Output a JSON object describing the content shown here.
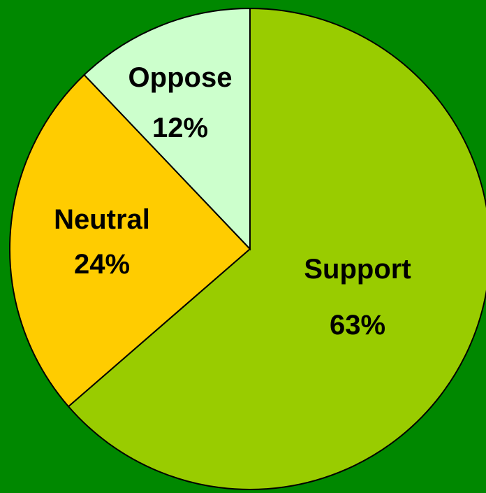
{
  "chart_data": {
    "type": "pie",
    "title": "",
    "slices": [
      {
        "label": "Support",
        "value": 63,
        "value_label": "63%",
        "color": "#99cc00"
      },
      {
        "label": "Neutral",
        "value": 24,
        "value_label": "24%",
        "color": "#ffcc00"
      },
      {
        "label": "Oppose",
        "value": 12,
        "value_label": "12%",
        "color": "#ccffcc"
      }
    ],
    "background_color": "#008800",
    "start_angle": "12 o'clock",
    "direction": "clockwise",
    "legend": "none",
    "labels_inside_slices": true
  }
}
